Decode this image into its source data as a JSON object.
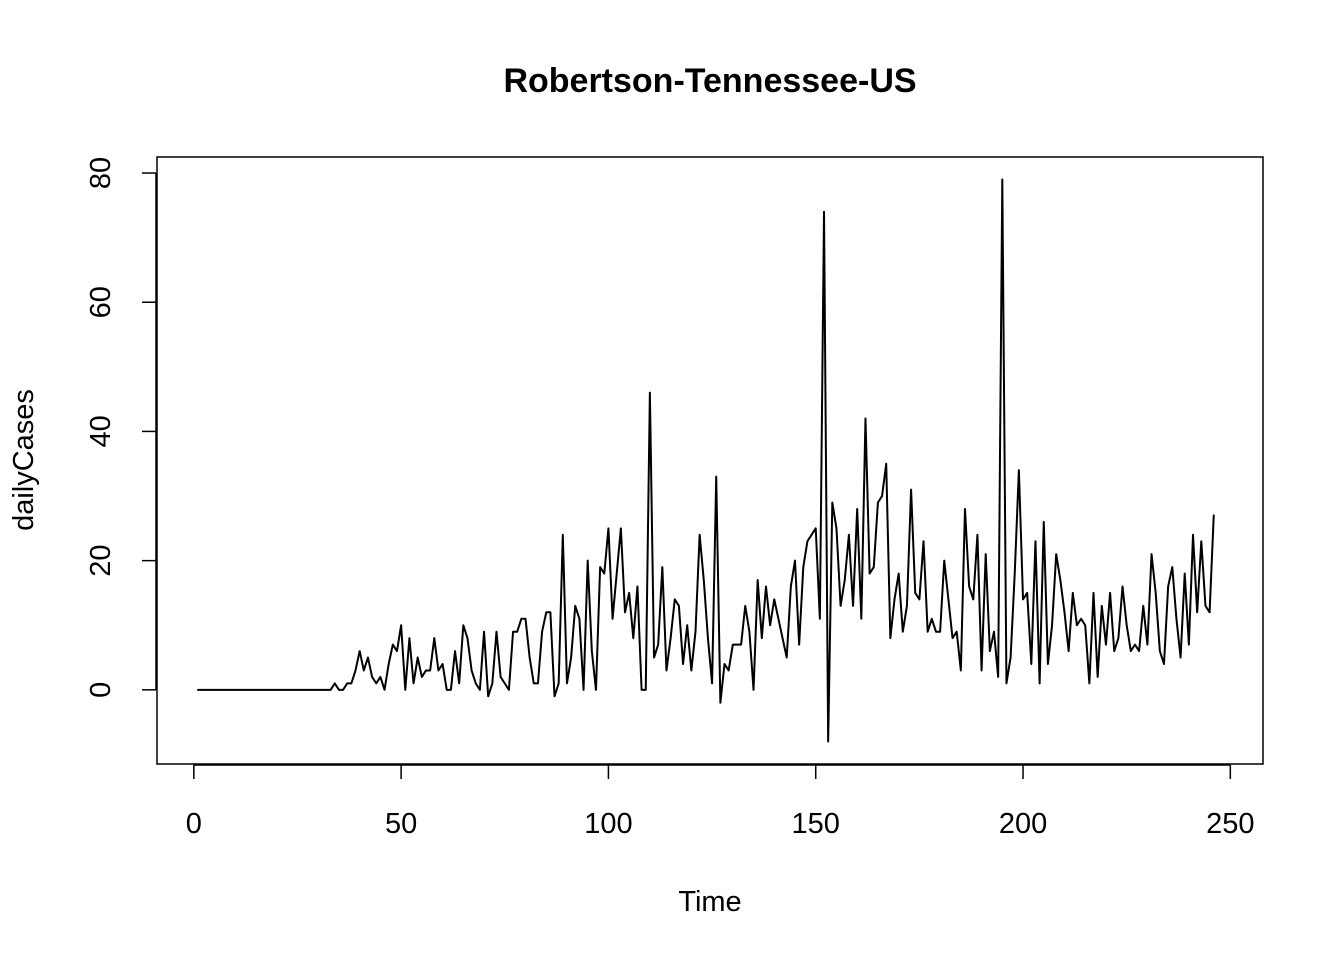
{
  "chart_data": {
    "type": "line",
    "title": "Robertson-Tennessee-US",
    "xlabel": "Time",
    "ylabel": "dailyCases",
    "xlim": [
      -8.88,
      257.88
    ],
    "ylim": [
      -11.48,
      82.48
    ],
    "x_ticks": [
      "0",
      "50",
      "100",
      "150",
      "200",
      "250"
    ],
    "y_ticks": [
      "0",
      "20",
      "40",
      "60",
      "80"
    ],
    "grid": false,
    "legend": "none",
    "line_color": "#000000",
    "x_start": 1,
    "x_step": 1,
    "series": [
      {
        "values": [
          0,
          0,
          0,
          0,
          0,
          0,
          0,
          0,
          0,
          0,
          0,
          0,
          0,
          0,
          0,
          0,
          0,
          0,
          0,
          0,
          0,
          0,
          0,
          0,
          0,
          0,
          0,
          0,
          0,
          0,
          0,
          0,
          0,
          1,
          0,
          0,
          1,
          1,
          3,
          6,
          3,
          5,
          2,
          1,
          2,
          0,
          4,
          7,
          6,
          10,
          0,
          8,
          1,
          5,
          2,
          3,
          3,
          8,
          3,
          4,
          0,
          0,
          6,
          1,
          10,
          8,
          3,
          1,
          0,
          9,
          -1,
          1,
          9,
          2,
          1,
          0,
          9,
          9,
          11,
          11,
          5,
          1,
          1,
          9,
          12,
          12,
          -1,
          1,
          24,
          1,
          5,
          13,
          11,
          0,
          20,
          6,
          0,
          19,
          18,
          25,
          11,
          18,
          25,
          12,
          15,
          8,
          16,
          0,
          0,
          46,
          5,
          7,
          19,
          3,
          8,
          14,
          13,
          4,
          10,
          3,
          9,
          24,
          17,
          8,
          1,
          33,
          -2,
          4,
          3,
          7,
          7,
          7,
          13,
          9,
          0,
          17,
          8,
          16,
          10,
          14,
          11,
          8,
          5,
          16,
          20,
          7,
          19,
          23,
          24,
          25,
          11,
          74,
          -8,
          29,
          25,
          13,
          17,
          24,
          13,
          28,
          11,
          42,
          18,
          19,
          29,
          30,
          35,
          8,
          14,
          18,
          9,
          13,
          31,
          15,
          14,
          23,
          9,
          11,
          9,
          9,
          20,
          14,
          8,
          9,
          3,
          28,
          16,
          14,
          24,
          3,
          21,
          6,
          9,
          2,
          79,
          1,
          5,
          18,
          34,
          14,
          15,
          4,
          23,
          1,
          26,
          4,
          10,
          21,
          17,
          12,
          6,
          15,
          10,
          11,
          10,
          1,
          15,
          2,
          13,
          7,
          15,
          6,
          8,
          16,
          10,
          6,
          7,
          6,
          13,
          7,
          21,
          15,
          6,
          4,
          16,
          19,
          11,
          5,
          18,
          7,
          24,
          12,
          23,
          13,
          12,
          27
        ]
      }
    ]
  }
}
